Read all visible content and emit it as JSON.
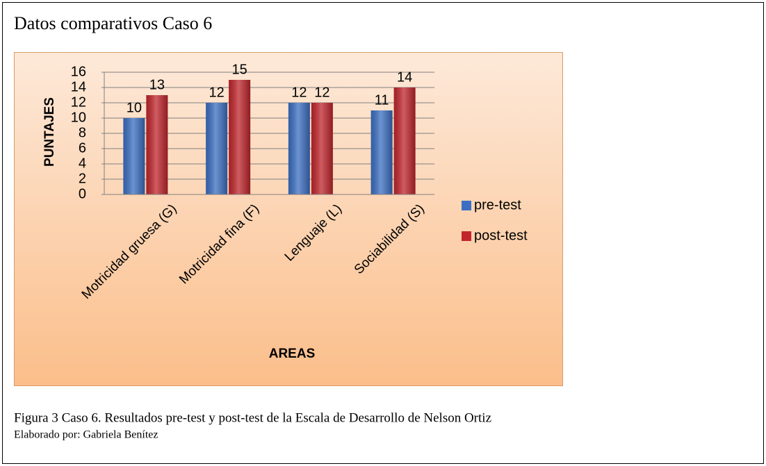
{
  "chart_data": {
    "type": "bar",
    "title": "Datos comparativos Caso 6",
    "x_label": "AREAS",
    "y_label": "PUNTAJES",
    "categories": [
      "Motricidad gruesa (G)",
      "Motricidad fina (F)",
      "Lenguaje (L)",
      "Sociabilidad (S)"
    ],
    "series": [
      {
        "name": "pre-test",
        "color": "#3c6fc2",
        "values": [
          10,
          12,
          12,
          11
        ]
      },
      {
        "name": "post-test",
        "color": "#c0262c",
        "values": [
          13,
          15,
          12,
          14
        ]
      }
    ],
    "ylim": [
      0,
      16
    ],
    "yticks": [
      0,
      2,
      4,
      6,
      8,
      10,
      12,
      14,
      16
    ],
    "grid": true,
    "legend": "right"
  },
  "figure": {
    "caption": "Figura 3 Caso 6. Resultados pre-test y post-test de la Escala de Desarrollo de Nelson Ortiz",
    "credit": "Elaborado por: Gabriela Benítez"
  }
}
